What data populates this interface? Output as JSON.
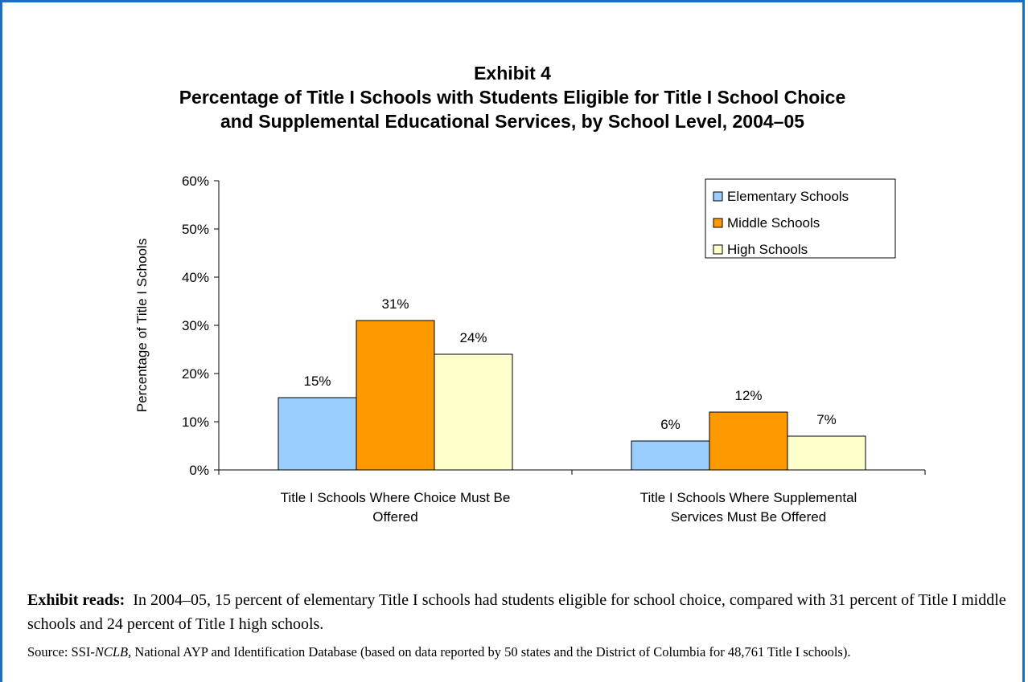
{
  "exhibit_label": "Exhibit 4",
  "title_line1": "Percentage of Title I Schools with Students Eligible for Title I School Choice",
  "title_line2": "and Supplemental Educational Services, by School Level, 2004–05",
  "chart_data": {
    "type": "bar",
    "ylabel": "Percentage of Title I Schools",
    "xlabel": "",
    "ylim": [
      0,
      60
    ],
    "y_ticks": [
      0,
      10,
      20,
      30,
      40,
      50,
      60
    ],
    "y_tick_labels": [
      "0%",
      "10%",
      "20%",
      "30%",
      "40%",
      "50%",
      "60%"
    ],
    "categories": [
      [
        "Title I Schools Where Choice Must Be",
        "Offered"
      ],
      [
        "Title I Schools Where Supplemental",
        "Services Must Be Offered"
      ]
    ],
    "series": [
      {
        "name": "Elementary Schools",
        "color": "#99ccff",
        "values": [
          15,
          6
        ],
        "labels": [
          "15%",
          "6%"
        ]
      },
      {
        "name": "Middle Schools",
        "color": "#ff9900",
        "values": [
          31,
          12
        ],
        "labels": [
          "31%",
          "12%"
        ]
      },
      {
        "name": "High Schools",
        "color": "#ffffcc",
        "values": [
          24,
          7
        ],
        "labels": [
          "24%",
          "7%"
        ]
      }
    ],
    "grid": false,
    "legend_position": "top-right"
  },
  "notes": {
    "reads_label": "Exhibit reads:",
    "reads_text": "In 2004–05, 15 percent of elementary Title I schools had students eligible for school choice, compared with 31 percent of Title I middle schools and 24 percent of Title I high schools.",
    "source_prefix": "Source:  SSI-",
    "source_italic": "NCLB,",
    "source_text": " National AYP and Identification Database (based on data reported by 50 states and the District of Columbia for 48,761 Title I schools)."
  }
}
